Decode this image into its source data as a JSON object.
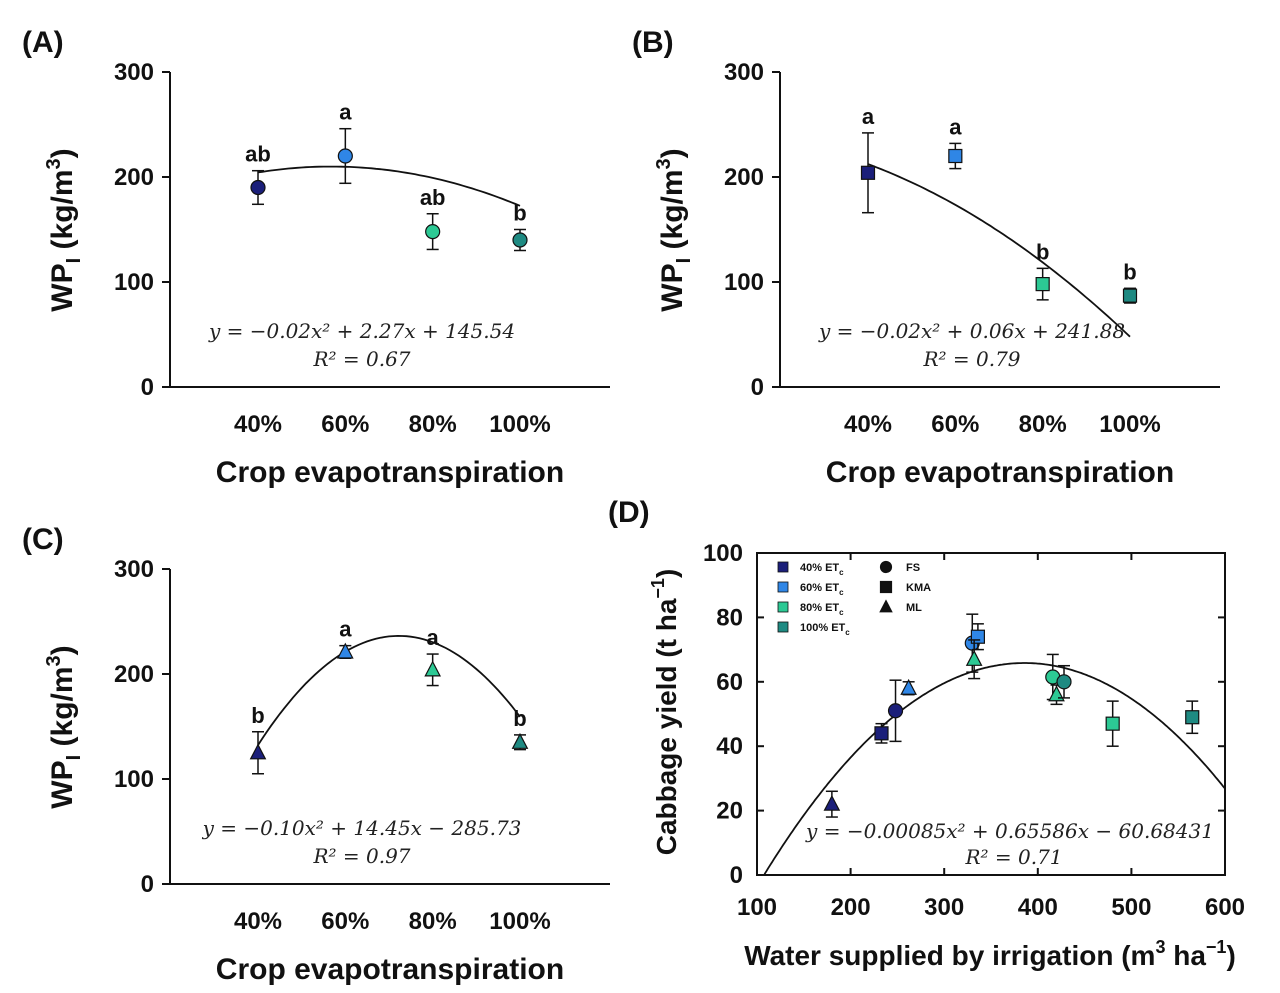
{
  "colors": {
    "et40": "#1b1f7a",
    "et60": "#2f86e6",
    "et80": "#2cc994",
    "et100": "#1e8a82",
    "axis": "#111111"
  },
  "chart_data": [
    {
      "panel": "(A)",
      "type": "scatter",
      "marker": "circle",
      "ylabel_main": "WP",
      "ylabel_sub": "I",
      "ylabel_unit_open": " (kg/m",
      "ylabel_unit_sup": "3",
      "ylabel_unit_close": ")",
      "xlabel": "Crop evapotranspiration",
      "categories": [
        "40%",
        "60%",
        "80%",
        "100%"
      ],
      "x": [
        40,
        60,
        80,
        100
      ],
      "values": [
        190,
        220,
        148,
        140
      ],
      "errors_upper": [
        16,
        26,
        17,
        10
      ],
      "errors_lower": [
        16,
        26,
        17,
        10
      ],
      "sig_letters": [
        "ab",
        "a",
        "ab",
        "b"
      ],
      "ylim": [
        0,
        300
      ],
      "yticks": [
        "0",
        "100",
        "200",
        "300"
      ],
      "fit": {
        "a": -0.02,
        "b": 2.27,
        "c": 145.54
      },
      "equation": "y = −0.02x² + 2.27x + 145.54",
      "r2": "R² = 0.67"
    },
    {
      "panel": "(B)",
      "type": "scatter",
      "marker": "square",
      "ylabel_main": "WP",
      "ylabel_sub": "I",
      "ylabel_unit_open": " (kg/m",
      "ylabel_unit_sup": "3",
      "ylabel_unit_close": ")",
      "xlabel": "Crop evapotranspiration",
      "categories": [
        "40%",
        "60%",
        "80%",
        "100%"
      ],
      "x": [
        40,
        60,
        80,
        100
      ],
      "values": [
        204,
        220,
        98,
        87
      ],
      "errors_upper": [
        38,
        12,
        15,
        7
      ],
      "errors_lower": [
        38,
        12,
        15,
        7
      ],
      "sig_letters": [
        "a",
        "a",
        "b",
        "b"
      ],
      "ylim": [
        0,
        300
      ],
      "yticks": [
        "0",
        "100",
        "200",
        "300"
      ],
      "fit": {
        "a": -0.02,
        "b": 0.06,
        "c": 241.88
      },
      "equation": "y = −0.02x² + 0.06x + 241.88",
      "r2": "R² = 0.79"
    },
    {
      "panel": "(C)",
      "type": "scatter",
      "marker": "triangle",
      "ylabel_main": "WP",
      "ylabel_sub": "I",
      "ylabel_unit_open": " (kg/m",
      "ylabel_unit_sup": "3",
      "ylabel_unit_close": ")",
      "xlabel": "Crop evapotranspiration",
      "categories": [
        "40%",
        "60%",
        "80%",
        "100%"
      ],
      "x": [
        40,
        60,
        80,
        100
      ],
      "values": [
        125,
        221,
        204,
        135
      ],
      "errors_upper": [
        20,
        6,
        15,
        7
      ],
      "errors_lower": [
        20,
        6,
        15,
        7
      ],
      "sig_letters": [
        "b",
        "a",
        "a",
        "b"
      ],
      "ylim": [
        0,
        300
      ],
      "yticks": [
        "0",
        "100",
        "200",
        "300"
      ],
      "fit": {
        "a": -0.1,
        "b": 14.45,
        "c": -285.73
      },
      "equation": "y = −0.10x² + 14.45x − 285.73",
      "r2": "R² = 0.97"
    },
    {
      "panel": "(D)",
      "type": "scatter",
      "ylabel_main": "Cabbage yield (t ha",
      "ylabel_sup": "−1",
      "ylabel_close": ")",
      "xlabel_main": "Water supplied by irrigation (m",
      "xlabel_sup1": "3",
      "xlabel_mid": " ha",
      "xlabel_sup2": "−1",
      "xlabel_close": ")",
      "xlim": [
        100,
        600
      ],
      "ylim": [
        0,
        100
      ],
      "xticks": [
        "100",
        "200",
        "300",
        "400",
        "500",
        "600"
      ],
      "yticks": [
        "0",
        "20",
        "40",
        "60",
        "80",
        "100"
      ],
      "fit": {
        "a": -0.00085,
        "b": 0.65586,
        "c": -60.68431
      },
      "equation": "y = −0.00085x² + 0.65586x − 60.68431",
      "r2": "R² = 0.71",
      "legend": {
        "levels": [
          {
            "label": "40% ET",
            "sub": "c",
            "color_key": "et40"
          },
          {
            "label": "60% ET",
            "sub": "c",
            "color_key": "et60"
          },
          {
            "label": "80% ET",
            "sub": "c",
            "color_key": "et80"
          },
          {
            "label": "100% ET",
            "sub": "c",
            "color_key": "et100"
          }
        ],
        "methods": [
          {
            "label": "FS",
            "marker": "circle"
          },
          {
            "label": "KMA",
            "marker": "square"
          },
          {
            "label": "ML",
            "marker": "triangle"
          }
        ]
      },
      "points": [
        {
          "x": 180,
          "y": 22,
          "err": 4,
          "marker": "triangle",
          "level": "et40"
        },
        {
          "x": 233,
          "y": 44,
          "err": 3,
          "marker": "square",
          "level": "et40"
        },
        {
          "x": 248,
          "y": 51,
          "err": 9.5,
          "marker": "circle",
          "level": "et40"
        },
        {
          "x": 262,
          "y": 58,
          "err": 2,
          "marker": "triangle",
          "level": "et60"
        },
        {
          "x": 330,
          "y": 72,
          "err": 9,
          "marker": "circle",
          "level": "et60"
        },
        {
          "x": 336,
          "y": 74,
          "err": 4,
          "marker": "square",
          "level": "et60"
        },
        {
          "x": 332,
          "y": 67,
          "err": 6,
          "marker": "triangle",
          "level": "et80"
        },
        {
          "x": 416,
          "y": 61.5,
          "err": 7,
          "marker": "circle",
          "level": "et80"
        },
        {
          "x": 420,
          "y": 56,
          "err": 3,
          "marker": "triangle",
          "level": "et80"
        },
        {
          "x": 428,
          "y": 60,
          "err": 5,
          "marker": "circle",
          "level": "et100"
        },
        {
          "x": 480,
          "y": 47,
          "err": 7,
          "marker": "square",
          "level": "et80"
        },
        {
          "x": 565,
          "y": 49,
          "err": 5,
          "marker": "square",
          "level": "et100"
        }
      ]
    }
  ]
}
